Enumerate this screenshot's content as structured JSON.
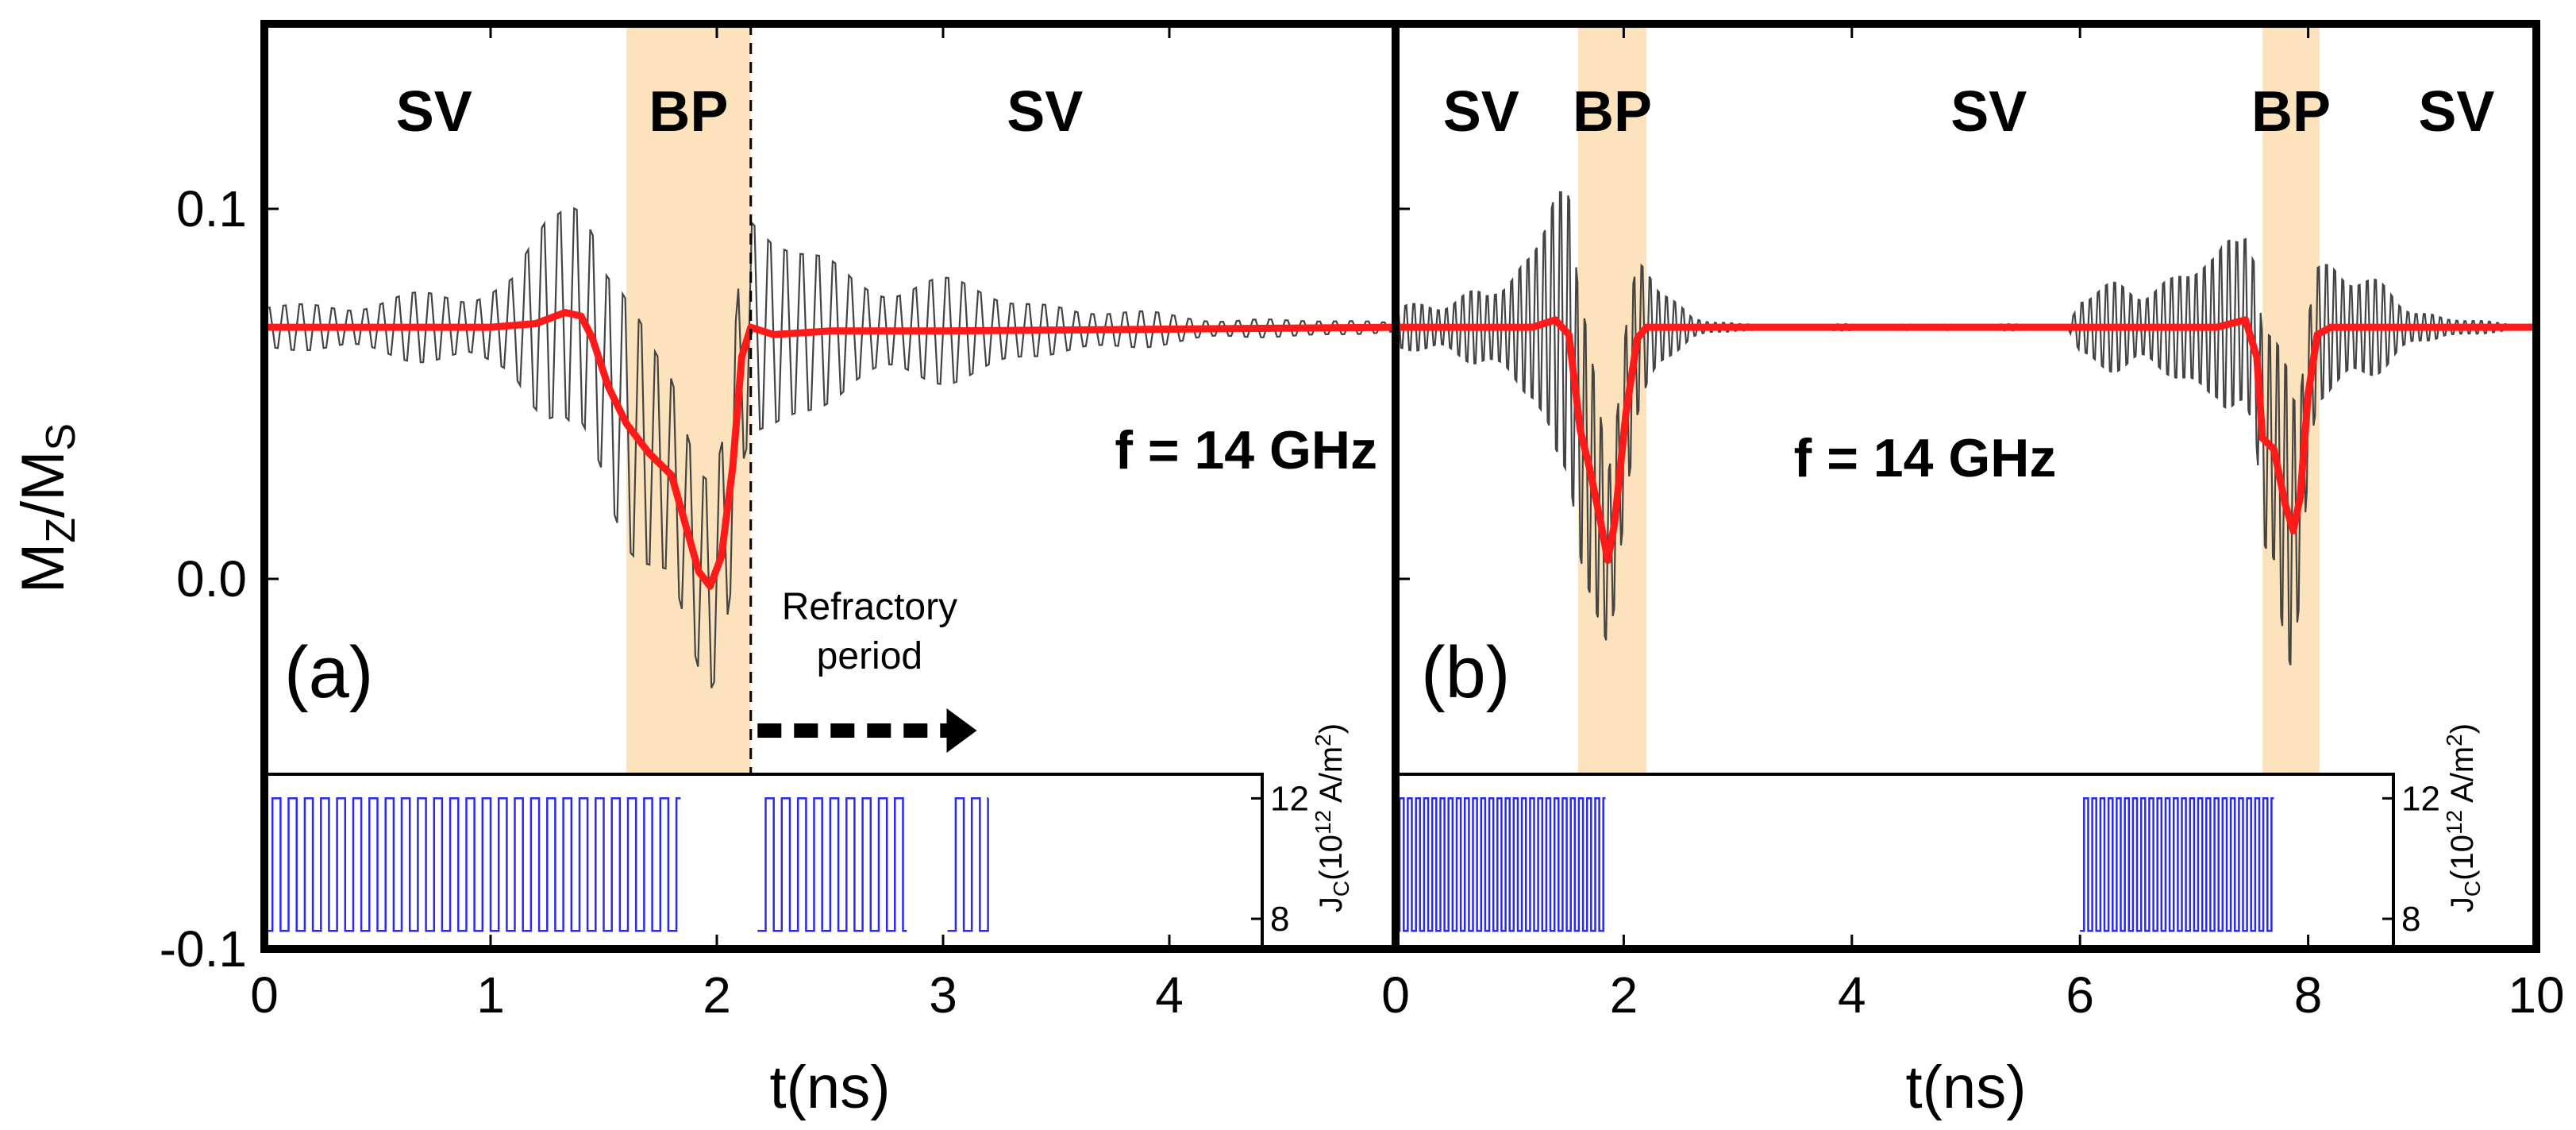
{
  "chart_data": [
    {
      "panel": "(a)",
      "type": "line",
      "xlabel": "t(ns)",
      "ylabel": "M_Z/M_S",
      "ylabel_main": "M",
      "ylabel_sub1": "Z",
      "ylabel_mid": "/M",
      "ylabel_sub2": "S",
      "xlim": [
        0,
        5
      ],
      "ylim": [
        -0.1,
        0.15
      ],
      "xticks": [
        0,
        1,
        2,
        3,
        4
      ],
      "xtick_labels": [
        "0",
        "1",
        "2",
        "3",
        "4"
      ],
      "yticks": [
        -0.1,
        0.0,
        0.1
      ],
      "ytick_labels": [
        "-0.1",
        "0.0",
        "0.1"
      ],
      "frequency_label": "f = 14 GHz",
      "regions": [
        {
          "label": "SV",
          "x_center": 0.75
        },
        {
          "label": "BP",
          "x_start": 1.6,
          "x_end": 2.15,
          "highlight_color": "#fde3bd"
        },
        {
          "label": "SV",
          "x_center": 3.45
        }
      ],
      "dashed_line_x": 2.15,
      "annotation": {
        "line1": "Refractory",
        "line2": "period",
        "arrow_from": 2.18,
        "arrow_to": 3.1
      },
      "series": [
        {
          "role": "oscillation",
          "color": "#444444",
          "baseline": 0.068,
          "freq_ghz": 14,
          "envelope": [
            [
              0,
              0.008
            ],
            [
              0.9,
              0.012
            ],
            [
              1.1,
              0.02
            ],
            [
              1.25,
              0.045
            ],
            [
              1.35,
              0.05
            ],
            [
              1.5,
              0.035
            ],
            [
              1.7,
              0.045
            ],
            [
              1.85,
              0.06
            ],
            [
              2.05,
              0.04
            ],
            [
              2.3,
              0.035
            ],
            [
              2.6,
              0.022
            ],
            [
              2.9,
              0.018
            ],
            [
              3.2,
              0.015
            ],
            [
              3.6,
              0.008
            ],
            [
              4.0,
              0.005
            ],
            [
              4.5,
              0.003
            ],
            [
              5.0,
              0.002
            ]
          ]
        },
        {
          "role": "average",
          "color": "#ff1a1a",
          "points": [
            [
              0,
              0.068
            ],
            [
              1.0,
              0.068
            ],
            [
              1.2,
              0.069
            ],
            [
              1.33,
              0.072
            ],
            [
              1.4,
              0.071
            ],
            [
              1.45,
              0.065
            ],
            [
              1.52,
              0.052
            ],
            [
              1.6,
              0.042
            ],
            [
              1.7,
              0.034
            ],
            [
              1.8,
              0.028
            ],
            [
              1.86,
              0.015
            ],
            [
              1.92,
              0.002
            ],
            [
              1.97,
              -0.002
            ],
            [
              2.02,
              0.006
            ],
            [
              2.07,
              0.03
            ],
            [
              2.11,
              0.06
            ],
            [
              2.15,
              0.068
            ],
            [
              2.25,
              0.066
            ],
            [
              2.5,
              0.067
            ],
            [
              3.0,
              0.067
            ],
            [
              5.0,
              0.068
            ]
          ]
        }
      ],
      "inset": {
        "ylabel": "J_C(10^12 A/m^2)",
        "ylabel_base": "J",
        "ylabel_sub": "C",
        "ylabel_open": "(10",
        "ylabel_exp": "12",
        "ylabel_unit": " A/m",
        "ylabel_exp2": "2",
        "ylabel_close": ")",
        "yticks": [
          8,
          12
        ],
        "ytick_labels": [
          "8",
          "12"
        ],
        "ylim": [
          7,
          12.8
        ],
        "high": 12,
        "low": 7.6,
        "color": "#2a2aee",
        "pulse_trains": [
          [
            0,
            1.84
          ],
          [
            2.18,
            2.84
          ],
          [
            3.02,
            3.2
          ]
        ]
      }
    },
    {
      "panel": "(b)",
      "type": "line",
      "xlabel": "t(ns)",
      "xlim": [
        0,
        10
      ],
      "ylim": [
        -0.1,
        0.15
      ],
      "xticks": [
        0,
        2,
        4,
        6,
        8,
        10
      ],
      "xtick_labels": [
        "0",
        "2",
        "4",
        "6",
        "8",
        "10"
      ],
      "frequency_label": "f = 14 GHz",
      "regions": [
        {
          "label": "SV",
          "x_center": 0.75
        },
        {
          "label": "BP",
          "x_start": 1.6,
          "x_end": 2.2,
          "highlight_color": "#fde3bd"
        },
        {
          "label": "SV",
          "x_center": 5.2
        },
        {
          "label": "BP",
          "x_start": 7.6,
          "x_end": 8.1,
          "highlight_color": "#fde3bd"
        },
        {
          "label": "SV",
          "x_center": 9.3
        }
      ],
      "series": [
        {
          "role": "oscillation",
          "color": "#444444",
          "baseline": 0.068,
          "freq_ghz": 14,
          "envelope": [
            [
              0,
              0.008
            ],
            [
              0.8,
              0.012
            ],
            [
              1.2,
              0.03
            ],
            [
              1.4,
              0.055
            ],
            [
              1.6,
              0.04
            ],
            [
              1.8,
              0.06
            ],
            [
              2.0,
              0.035
            ],
            [
              2.3,
              0.015
            ],
            [
              2.6,
              0.004
            ],
            [
              3.0,
              0.001
            ],
            [
              5.9,
              0.001
            ],
            [
              6.0,
              0.012
            ],
            [
              6.8,
              0.018
            ],
            [
              7.2,
              0.025
            ],
            [
              7.45,
              0.05
            ],
            [
              7.7,
              0.035
            ],
            [
              7.85,
              0.055
            ],
            [
              8.05,
              0.03
            ],
            [
              8.4,
              0.02
            ],
            [
              8.8,
              0.01
            ],
            [
              9.2,
              0.003
            ],
            [
              9.6,
              0.002
            ],
            [
              10,
              0.001
            ]
          ]
        },
        {
          "role": "average",
          "color": "#ff1a1a",
          "points": [
            [
              0,
              0.068
            ],
            [
              1.2,
              0.068
            ],
            [
              1.4,
              0.07
            ],
            [
              1.52,
              0.066
            ],
            [
              1.62,
              0.04
            ],
            [
              1.7,
              0.03
            ],
            [
              1.8,
              0.015
            ],
            [
              1.86,
              0.005
            ],
            [
              1.92,
              0.015
            ],
            [
              2.02,
              0.045
            ],
            [
              2.12,
              0.065
            ],
            [
              2.2,
              0.068
            ],
            [
              7.2,
              0.068
            ],
            [
              7.45,
              0.07
            ],
            [
              7.55,
              0.06
            ],
            [
              7.6,
              0.038
            ],
            [
              7.7,
              0.035
            ],
            [
              7.8,
              0.02
            ],
            [
              7.87,
              0.013
            ],
            [
              7.93,
              0.022
            ],
            [
              8.0,
              0.05
            ],
            [
              8.08,
              0.066
            ],
            [
              8.2,
              0.068
            ],
            [
              10,
              0.068
            ]
          ]
        }
      ],
      "inset": {
        "ylabel": "J_C(10^12 A/m^2)",
        "ylabel_base": "J",
        "ylabel_sub": "C",
        "ylabel_open": "(10",
        "ylabel_exp": "12",
        "ylabel_unit": " A/m",
        "ylabel_exp2": "2",
        "ylabel_close": ")",
        "yticks": [
          8,
          12
        ],
        "ytick_labels": [
          "8",
          "12"
        ],
        "ylim": [
          7,
          12.8
        ],
        "high": 12,
        "low": 7.6,
        "color": "#2a2aee",
        "pulse_trains": [
          [
            0,
            1.84
          ],
          [
            6.0,
            7.7
          ]
        ]
      }
    }
  ]
}
